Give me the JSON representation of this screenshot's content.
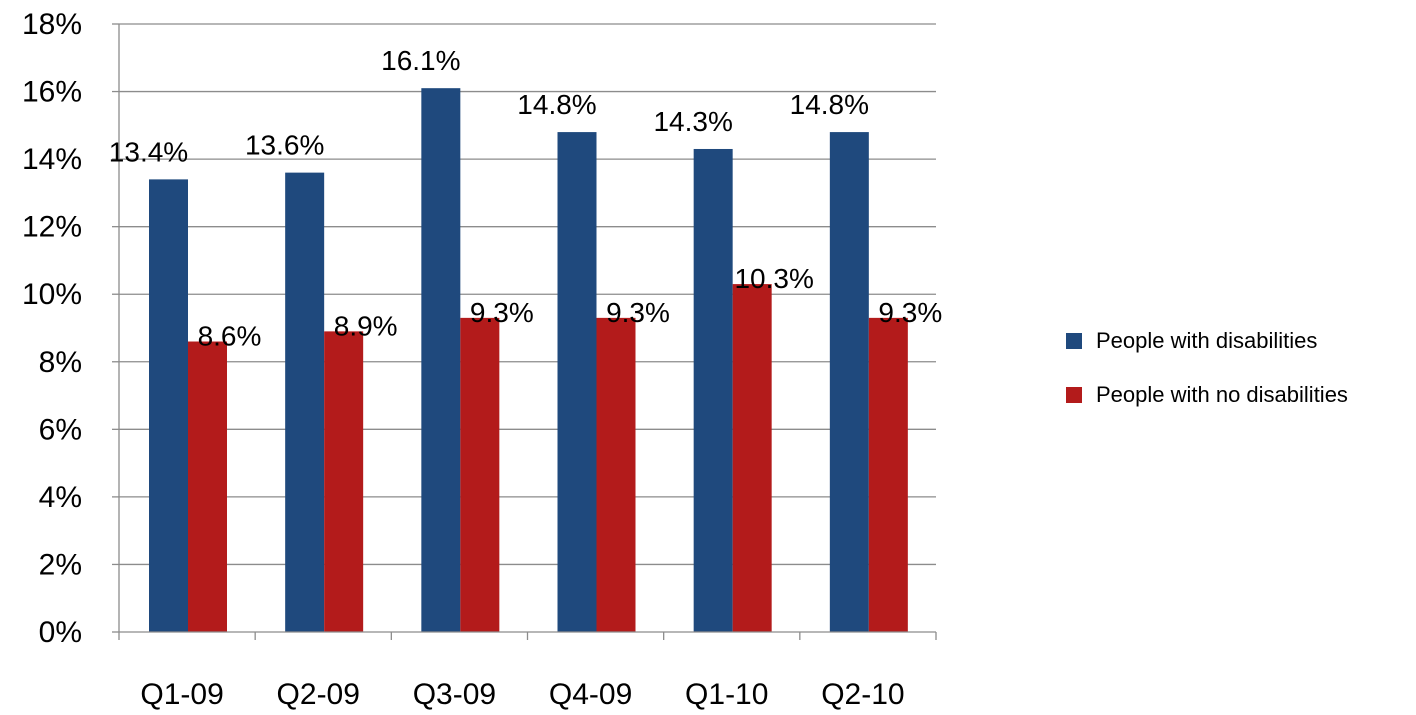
{
  "chart_data": {
    "type": "bar",
    "categories": [
      "Q1-09",
      "Q2-09",
      "Q3-09",
      "Q4-09",
      "Q1-10",
      "Q2-10"
    ],
    "series": [
      {
        "name": "People with disabilities",
        "color": "#1f497d",
        "values": [
          13.4,
          13.6,
          16.1,
          14.8,
          14.3,
          14.8
        ],
        "labels": [
          "13.4%",
          "13.6%",
          "16.1%",
          "14.8%",
          "14.3%",
          "14.8%"
        ]
      },
      {
        "name": "People with no disabilities",
        "color": "#b31b1b",
        "values": [
          8.6,
          8.9,
          9.3,
          9.3,
          10.3,
          9.3
        ],
        "labels": [
          "8.6%",
          "8.9%",
          "9.3%",
          "9.3%",
          "10.3%",
          "9.3%"
        ]
      }
    ],
    "ylim": [
      0,
      18
    ],
    "yticks": [
      "0%",
      "2%",
      "4%",
      "6%",
      "8%",
      "10%",
      "12%",
      "14%",
      "16%",
      "18%"
    ],
    "grid": true,
    "legend_position": "right"
  }
}
